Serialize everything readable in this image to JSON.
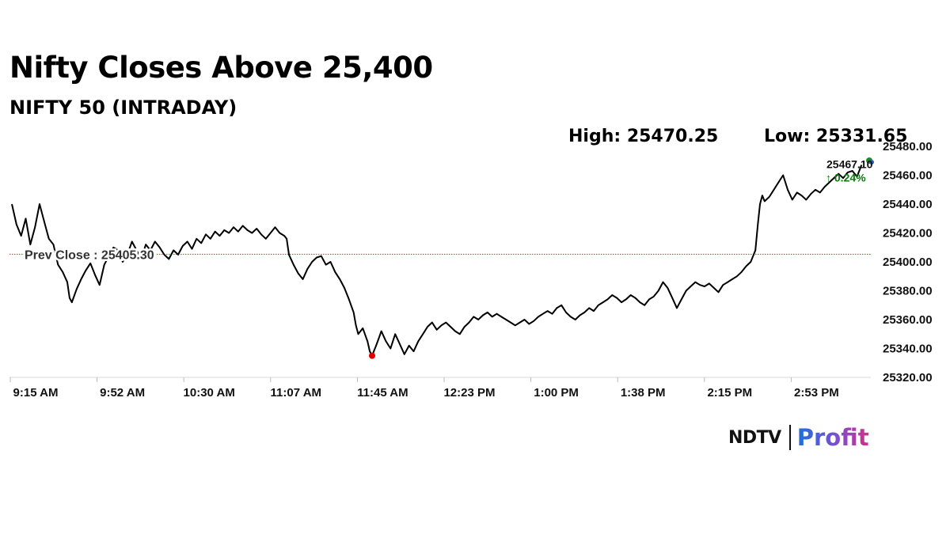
{
  "title": "Nifty Closes Above 25,400",
  "subtitle": "NIFTY 50 (INTRADAY)",
  "stats": {
    "high": "High: 25470.25",
    "low": "Low: 25331.65"
  },
  "logo": {
    "ndtv": "NDTV",
    "profit": "Profit"
  },
  "colors": {
    "line": "#000000",
    "prev_close_line": "#c0392b",
    "low_marker": "#e00000",
    "change_text": "#0a7a0a",
    "logo_profit_start": "#1e6fd9",
    "logo_profit_end": "#d62d88"
  },
  "chart_data": {
    "type": "line",
    "x_tick_labels": [
      "9:15 AM",
      "9:52 AM",
      "10:30 AM",
      "11:07 AM",
      "11:45 AM",
      "12:23 PM",
      "1:00 PM",
      "1:38 PM",
      "2:15 PM",
      "2:53 PM"
    ],
    "y_tick_labels": [
      "25320.00",
      "25340.00",
      "25360.00",
      "25380.00",
      "25400.00",
      "25420.00",
      "25440.00",
      "25460.00",
      "25480.00"
    ],
    "ylim": [
      25320,
      25480
    ],
    "x_unit": "minutes since 9:15 AM",
    "xlim": [
      0,
      372
    ],
    "grid": false,
    "series": [
      {
        "points": [
          [
            0,
            25440
          ],
          [
            2,
            25426
          ],
          [
            4,
            25418
          ],
          [
            6,
            25430
          ],
          [
            8,
            25412
          ],
          [
            10,
            25424
          ],
          [
            12,
            25440
          ],
          [
            14,
            25428
          ],
          [
            16,
            25416
          ],
          [
            18,
            25412
          ],
          [
            20,
            25398
          ],
          [
            22,
            25393
          ],
          [
            24,
            25386
          ],
          [
            25,
            25375
          ],
          [
            26,
            25372
          ],
          [
            28,
            25381
          ],
          [
            30,
            25388
          ],
          [
            32,
            25394
          ],
          [
            34,
            25399
          ],
          [
            36,
            25391
          ],
          [
            38,
            25384
          ],
          [
            40,
            25398
          ],
          [
            42,
            25404
          ],
          [
            44,
            25410
          ],
          [
            46,
            25408
          ],
          [
            48,
            25400
          ],
          [
            50,
            25405
          ],
          [
            52,
            25414
          ],
          [
            54,
            25408
          ],
          [
            56,
            25402
          ],
          [
            58,
            25412
          ],
          [
            60,
            25408
          ],
          [
            62,
            25414
          ],
          [
            64,
            25410
          ],
          [
            66,
            25405
          ],
          [
            68,
            25402
          ],
          [
            70,
            25408
          ],
          [
            72,
            25405
          ],
          [
            74,
            25411
          ],
          [
            76,
            25414
          ],
          [
            78,
            25409
          ],
          [
            80,
            25416
          ],
          [
            82,
            25413
          ],
          [
            84,
            25419
          ],
          [
            86,
            25416
          ],
          [
            88,
            25421
          ],
          [
            90,
            25418
          ],
          [
            92,
            25422
          ],
          [
            94,
            25420
          ],
          [
            96,
            25424
          ],
          [
            98,
            25421
          ],
          [
            100,
            25425
          ],
          [
            102,
            25422
          ],
          [
            104,
            25420
          ],
          [
            106,
            25423
          ],
          [
            108,
            25419
          ],
          [
            110,
            25416
          ],
          [
            112,
            25420
          ],
          [
            114,
            25424
          ],
          [
            116,
            25420
          ],
          [
            118,
            25418
          ],
          [
            119,
            25416
          ],
          [
            120,
            25405
          ],
          [
            122,
            25398
          ],
          [
            124,
            25392
          ],
          [
            126,
            25388
          ],
          [
            128,
            25395
          ],
          [
            130,
            25400
          ],
          [
            132,
            25403
          ],
          [
            134,
            25404
          ],
          [
            136,
            25398
          ],
          [
            138,
            25400
          ],
          [
            140,
            25393
          ],
          [
            142,
            25388
          ],
          [
            144,
            25382
          ],
          [
            146,
            25374
          ],
          [
            148,
            25365
          ],
          [
            149,
            25356
          ],
          [
            150,
            25350
          ],
          [
            152,
            25354
          ],
          [
            154,
            25345
          ],
          [
            155,
            25338
          ],
          [
            156,
            25335
          ],
          [
            158,
            25343
          ],
          [
            160,
            25352
          ],
          [
            162,
            25345
          ],
          [
            164,
            25340
          ],
          [
            166,
            25350
          ],
          [
            168,
            25343
          ],
          [
            170,
            25336
          ],
          [
            172,
            25342
          ],
          [
            174,
            25338
          ],
          [
            176,
            25345
          ],
          [
            178,
            25350
          ],
          [
            180,
            25355
          ],
          [
            182,
            25358
          ],
          [
            184,
            25353
          ],
          [
            186,
            25356
          ],
          [
            188,
            25358
          ],
          [
            190,
            25355
          ],
          [
            192,
            25352
          ],
          [
            194,
            25350
          ],
          [
            196,
            25355
          ],
          [
            198,
            25358
          ],
          [
            200,
            25362
          ],
          [
            202,
            25360
          ],
          [
            204,
            25363
          ],
          [
            206,
            25365
          ],
          [
            208,
            25362
          ],
          [
            210,
            25364
          ],
          [
            212,
            25362
          ],
          [
            214,
            25360
          ],
          [
            216,
            25358
          ],
          [
            218,
            25356
          ],
          [
            220,
            25358
          ],
          [
            222,
            25360
          ],
          [
            224,
            25357
          ],
          [
            226,
            25359
          ],
          [
            228,
            25362
          ],
          [
            230,
            25364
          ],
          [
            232,
            25366
          ],
          [
            234,
            25364
          ],
          [
            236,
            25368
          ],
          [
            238,
            25370
          ],
          [
            240,
            25365
          ],
          [
            242,
            25362
          ],
          [
            244,
            25360
          ],
          [
            246,
            25363
          ],
          [
            248,
            25365
          ],
          [
            250,
            25368
          ],
          [
            252,
            25366
          ],
          [
            254,
            25370
          ],
          [
            256,
            25372
          ],
          [
            258,
            25374
          ],
          [
            260,
            25377
          ],
          [
            262,
            25375
          ],
          [
            264,
            25372
          ],
          [
            266,
            25374
          ],
          [
            268,
            25377
          ],
          [
            270,
            25375
          ],
          [
            272,
            25372
          ],
          [
            274,
            25370
          ],
          [
            276,
            25374
          ],
          [
            278,
            25376
          ],
          [
            280,
            25380
          ],
          [
            282,
            25386
          ],
          [
            284,
            25382
          ],
          [
            286,
            25375
          ],
          [
            288,
            25368
          ],
          [
            290,
            25374
          ],
          [
            292,
            25380
          ],
          [
            294,
            25383
          ],
          [
            296,
            25386
          ],
          [
            298,
            25384
          ],
          [
            300,
            25383
          ],
          [
            302,
            25385
          ],
          [
            304,
            25382
          ],
          [
            306,
            25379
          ],
          [
            308,
            25384
          ],
          [
            310,
            25386
          ],
          [
            312,
            25388
          ],
          [
            314,
            25390
          ],
          [
            316,
            25393
          ],
          [
            318,
            25397
          ],
          [
            320,
            25400
          ],
          [
            322,
            25408
          ],
          [
            323,
            25425
          ],
          [
            324,
            25440
          ],
          [
            325,
            25446
          ],
          [
            326,
            25442
          ],
          [
            328,
            25445
          ],
          [
            330,
            25450
          ],
          [
            332,
            25455
          ],
          [
            334,
            25460
          ],
          [
            336,
            25450
          ],
          [
            338,
            25443
          ],
          [
            340,
            25448
          ],
          [
            342,
            25446
          ],
          [
            344,
            25443
          ],
          [
            346,
            25447
          ],
          [
            348,
            25450
          ],
          [
            350,
            25448
          ],
          [
            352,
            25452
          ],
          [
            354,
            25455
          ],
          [
            356,
            25458
          ],
          [
            358,
            25461
          ],
          [
            360,
            25458
          ],
          [
            362,
            25462
          ],
          [
            364,
            25463
          ],
          [
            366,
            25459
          ],
          [
            368,
            25467.1
          ]
        ]
      }
    ],
    "prev_close": {
      "value": 25405.3,
      "label": "Prev Close : 25405.30"
    },
    "low_point": {
      "x": 156,
      "y": 25335
    },
    "last": {
      "value": 25467.1,
      "label": "25467.10",
      "change_label": "↑ 0.24%"
    }
  }
}
